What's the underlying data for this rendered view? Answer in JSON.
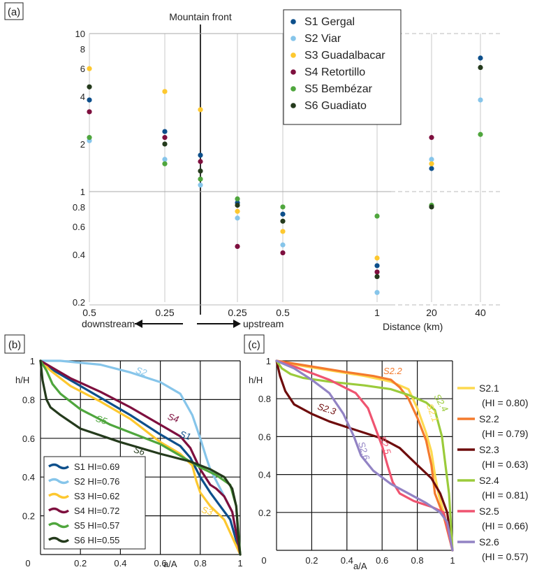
{
  "colors": {
    "S1": "#0d4f8b",
    "S2": "#86c5ea",
    "S3": "#fdc82f",
    "S4": "#7e0f3e",
    "S5": "#4fa63d",
    "S6": "#243a1c",
    "S2.1": "#fdd94f",
    "S2.2": "#f47a2d",
    "S2.3": "#6e0c0c",
    "S2.4": "#9bcb3b",
    "S2.5": "#ef5470",
    "S2.6": "#9283c4"
  },
  "panel_labels": {
    "a": "(a)",
    "b": "(b)",
    "c": "(c)"
  },
  "panel_a": {
    "mountain_front": "Mountain front",
    "downstream": "downstream",
    "upstream": "upstream",
    "distance_label": "Distance (km)",
    "y_ticks": [
      "0.2",
      "0.4",
      "0.6",
      "0.8",
      "1",
      "2",
      "4",
      "6",
      "8",
      "10"
    ],
    "x_ticks": [
      "0.5",
      "0.25",
      "0.25",
      "0.5",
      "1",
      "20",
      "40"
    ]
  },
  "panel_b": {
    "ylabel": "h/H",
    "xlabel": "a/A",
    "x_ticks": [
      "0",
      "0.2",
      "0.4",
      "0.6",
      "0.8",
      "1"
    ],
    "y_ticks": [
      "0.2",
      "0.4",
      "0.6",
      "0.8",
      "1"
    ],
    "legend": [
      "S1 HI=0.69",
      "S2 HI=0.76",
      "S3 HI=0.62",
      "S4 HI=0.72",
      "S5 HI=0.57",
      "S6 HI=0.55"
    ]
  },
  "panel_c": {
    "ylabel": "h/H",
    "xlabel": "a/A",
    "x_ticks": [
      "0",
      "0.2",
      "0.4",
      "0.6",
      "0.8",
      "1"
    ],
    "y_ticks": [
      "0.2",
      "0.4",
      "0.6",
      "0.8",
      "1"
    ],
    "legend_names": [
      "S2.1",
      "S2.2",
      "S2.3",
      "S2.4",
      "S2.5",
      "S2.6"
    ],
    "legend_hi": [
      "(HI = 0.80)",
      "(HI = 0.79)",
      "(HI = 0.63)",
      "(HI = 0.81)",
      "(HI = 0.66)",
      "(HI = 0.57)"
    ]
  },
  "chart_data": [
    {
      "type": "scatter",
      "panel": "a",
      "yscale": "log",
      "ylim": [
        0.2,
        10
      ],
      "x_categories": [
        "0.5 downstream",
        "0.25 downstream",
        "Mountain front",
        "0.25 upstream",
        "0.5 upstream",
        "1",
        "20",
        "40"
      ],
      "legend_placement": "top-center",
      "series": [
        {
          "key": "S1",
          "name": "S1 Gergal",
          "values": [
            3.8,
            2.4,
            1.7,
            0.85,
            0.72,
            0.34,
            1.4,
            7.0
          ]
        },
        {
          "key": "S2",
          "name": "S2 Viar",
          "values": [
            2.1,
            1.6,
            1.1,
            0.68,
            0.46,
            0.23,
            1.6,
            3.8
          ]
        },
        {
          "key": "S3",
          "name": "S3 Guadalbacar",
          "values": [
            6.0,
            4.3,
            3.3,
            0.75,
            0.56,
            0.38,
            1.5,
            null
          ]
        },
        {
          "key": "S4",
          "name": "S4 Retortillo",
          "values": [
            3.2,
            2.2,
            1.55,
            0.45,
            0.41,
            0.31,
            2.2,
            null
          ]
        },
        {
          "key": "S5",
          "name": "S5 Bembézar",
          "values": [
            2.2,
            1.5,
            1.2,
            0.9,
            0.8,
            0.7,
            0.82,
            2.3
          ]
        },
        {
          "key": "S6",
          "name": "S6 Guadiato",
          "values": [
            4.6,
            2.0,
            1.35,
            0.82,
            0.65,
            0.29,
            0.8,
            6.1
          ]
        }
      ]
    },
    {
      "type": "line",
      "panel": "b",
      "xlim": [
        0,
        1
      ],
      "ylim": [
        0,
        1
      ],
      "grid": true,
      "series": [
        {
          "key": "S1",
          "name": "S1",
          "points": [
            [
              0,
              1
            ],
            [
              0.05,
              0.96
            ],
            [
              0.15,
              0.9
            ],
            [
              0.3,
              0.81
            ],
            [
              0.45,
              0.72
            ],
            [
              0.6,
              0.62
            ],
            [
              0.7,
              0.56
            ],
            [
              0.75,
              0.5
            ],
            [
              0.8,
              0.4
            ],
            [
              0.85,
              0.32
            ],
            [
              0.9,
              0.25
            ],
            [
              0.95,
              0.18
            ],
            [
              1,
              0
            ]
          ]
        },
        {
          "key": "S2",
          "name": "S2",
          "points": [
            [
              0,
              1
            ],
            [
              0.1,
              1
            ],
            [
              0.3,
              0.98
            ],
            [
              0.45,
              0.94
            ],
            [
              0.6,
              0.89
            ],
            [
              0.7,
              0.83
            ],
            [
              0.76,
              0.72
            ],
            [
              0.8,
              0.6
            ],
            [
              0.83,
              0.5
            ],
            [
              0.85,
              0.44
            ],
            [
              0.88,
              0.38
            ],
            [
              0.92,
              0.3
            ],
            [
              0.96,
              0.22
            ],
            [
              1,
              0
            ]
          ]
        },
        {
          "key": "S3",
          "name": "S3",
          "points": [
            [
              0,
              1
            ],
            [
              0.05,
              0.95
            ],
            [
              0.15,
              0.87
            ],
            [
              0.3,
              0.79
            ],
            [
              0.45,
              0.7
            ],
            [
              0.6,
              0.58
            ],
            [
              0.7,
              0.52
            ],
            [
              0.76,
              0.46
            ],
            [
              0.78,
              0.38
            ],
            [
              0.8,
              0.32
            ],
            [
              0.85,
              0.25
            ],
            [
              0.92,
              0.18
            ],
            [
              1,
              0
            ]
          ]
        },
        {
          "key": "S4",
          "name": "S4",
          "points": [
            [
              0,
              1
            ],
            [
              0.05,
              0.97
            ],
            [
              0.15,
              0.91
            ],
            [
              0.3,
              0.84
            ],
            [
              0.45,
              0.76
            ],
            [
              0.6,
              0.67
            ],
            [
              0.7,
              0.61
            ],
            [
              0.75,
              0.55
            ],
            [
              0.8,
              0.44
            ],
            [
              0.85,
              0.36
            ],
            [
              0.88,
              0.34
            ],
            [
              0.92,
              0.3
            ],
            [
              0.96,
              0.22
            ],
            [
              1,
              0
            ]
          ]
        },
        {
          "key": "S5",
          "name": "S5",
          "points": [
            [
              0,
              1
            ],
            [
              0.03,
              0.95
            ],
            [
              0.06,
              0.88
            ],
            [
              0.1,
              0.83
            ],
            [
              0.2,
              0.75
            ],
            [
              0.35,
              0.67
            ],
            [
              0.5,
              0.61
            ],
            [
              0.6,
              0.57
            ],
            [
              0.7,
              0.51
            ],
            [
              0.8,
              0.45
            ],
            [
              0.88,
              0.41
            ],
            [
              0.95,
              0.36
            ],
            [
              0.98,
              0.25
            ],
            [
              1,
              0
            ]
          ]
        },
        {
          "key": "S6",
          "name": "S6",
          "points": [
            [
              0,
              1
            ],
            [
              0.01,
              0.9
            ],
            [
              0.03,
              0.8
            ],
            [
              0.05,
              0.76
            ],
            [
              0.1,
              0.72
            ],
            [
              0.2,
              0.65
            ],
            [
              0.4,
              0.58
            ],
            [
              0.6,
              0.52
            ],
            [
              0.75,
              0.48
            ],
            [
              0.85,
              0.44
            ],
            [
              0.92,
              0.4
            ],
            [
              0.96,
              0.34
            ],
            [
              0.98,
              0.25
            ],
            [
              0.99,
              0.1
            ],
            [
              1,
              0
            ]
          ]
        }
      ]
    },
    {
      "type": "line",
      "panel": "c",
      "xlim": [
        0,
        1
      ],
      "ylim": [
        0,
        1
      ],
      "grid": true,
      "series": [
        {
          "key": "S2.1",
          "name": "S2.1",
          "points": [
            [
              0,
              1
            ],
            [
              0.1,
              0.98
            ],
            [
              0.3,
              0.95
            ],
            [
              0.5,
              0.92
            ],
            [
              0.65,
              0.89
            ],
            [
              0.75,
              0.85
            ],
            [
              0.8,
              0.75
            ],
            [
              0.85,
              0.62
            ],
            [
              0.88,
              0.52
            ],
            [
              0.9,
              0.4
            ],
            [
              0.92,
              0.3
            ],
            [
              0.95,
              0.2
            ],
            [
              0.98,
              0.1
            ],
            [
              1,
              0
            ]
          ]
        },
        {
          "key": "S2.2",
          "name": "S2.2",
          "points": [
            [
              0,
              1
            ],
            [
              0.2,
              0.97
            ],
            [
              0.4,
              0.94
            ],
            [
              0.55,
              0.92
            ],
            [
              0.65,
              0.9
            ],
            [
              0.7,
              0.86
            ],
            [
              0.75,
              0.8
            ],
            [
              0.8,
              0.7
            ],
            [
              0.85,
              0.58
            ],
            [
              0.88,
              0.45
            ],
            [
              0.9,
              0.3
            ],
            [
              0.95,
              0.18
            ],
            [
              1,
              0
            ]
          ]
        },
        {
          "key": "S2.3",
          "name": "S2.3",
          "points": [
            [
              0,
              1
            ],
            [
              0.02,
              0.92
            ],
            [
              0.05,
              0.84
            ],
            [
              0.1,
              0.77
            ],
            [
              0.2,
              0.72
            ],
            [
              0.3,
              0.68
            ],
            [
              0.4,
              0.65
            ],
            [
              0.5,
              0.62
            ],
            [
              0.6,
              0.59
            ],
            [
              0.7,
              0.54
            ],
            [
              0.8,
              0.45
            ],
            [
              0.88,
              0.38
            ],
            [
              0.93,
              0.3
            ],
            [
              0.97,
              0.2
            ],
            [
              1,
              0
            ]
          ]
        },
        {
          "key": "S2.4",
          "name": "S2.4",
          "points": [
            [
              0,
              1
            ],
            [
              0.03,
              0.96
            ],
            [
              0.08,
              0.93
            ],
            [
              0.15,
              0.91
            ],
            [
              0.3,
              0.89
            ],
            [
              0.5,
              0.87
            ],
            [
              0.65,
              0.85
            ],
            [
              0.75,
              0.82
            ],
            [
              0.85,
              0.78
            ],
            [
              0.9,
              0.74
            ],
            [
              0.94,
              0.6
            ],
            [
              0.96,
              0.45
            ],
            [
              0.98,
              0.3
            ],
            [
              0.99,
              0.15
            ],
            [
              1,
              0
            ]
          ]
        },
        {
          "key": "S2.5",
          "name": "S2.5",
          "points": [
            [
              0,
              1
            ],
            [
              0.1,
              0.97
            ],
            [
              0.3,
              0.9
            ],
            [
              0.45,
              0.83
            ],
            [
              0.52,
              0.75
            ],
            [
              0.56,
              0.65
            ],
            [
              0.6,
              0.55
            ],
            [
              0.63,
              0.45
            ],
            [
              0.66,
              0.36
            ],
            [
              0.7,
              0.3
            ],
            [
              0.78,
              0.26
            ],
            [
              0.88,
              0.23
            ],
            [
              0.95,
              0.2
            ],
            [
              1,
              0
            ]
          ]
        },
        {
          "key": "S2.6",
          "name": "S2.6",
          "points": [
            [
              0,
              1
            ],
            [
              0.1,
              0.96
            ],
            [
              0.2,
              0.9
            ],
            [
              0.3,
              0.83
            ],
            [
              0.38,
              0.72
            ],
            [
              0.44,
              0.6
            ],
            [
              0.48,
              0.5
            ],
            [
              0.55,
              0.42
            ],
            [
              0.65,
              0.35
            ],
            [
              0.75,
              0.3
            ],
            [
              0.85,
              0.25
            ],
            [
              0.93,
              0.2
            ],
            [
              0.97,
              0.15
            ],
            [
              1,
              0
            ]
          ]
        }
      ]
    }
  ]
}
